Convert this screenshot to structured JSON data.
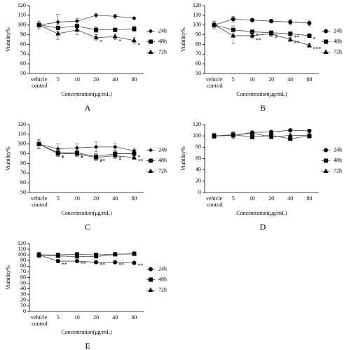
{
  "chart_data": [
    {
      "type": "line",
      "caption": "A",
      "ylabel": "Viability%",
      "xlabel": "Concentration(μg/mL)",
      "color": "#000000",
      "categories": [
        "vehicle control",
        "5",
        "10",
        "20",
        "40",
        "80"
      ],
      "ylim": [
        50,
        120
      ],
      "yticks": [
        50,
        60,
        70,
        80,
        90,
        100,
        110,
        120
      ],
      "series": [
        {
          "name": "24h",
          "marker": "diamond",
          "values": [
            100,
            103,
            104,
            110,
            109,
            107
          ],
          "errors": [
            4,
            8,
            3,
            2,
            2,
            1
          ],
          "significance": [
            null,
            null,
            null,
            null,
            null,
            null
          ]
        },
        {
          "name": "48h",
          "marker": "square",
          "values": [
            100,
            97,
            99,
            95,
            95,
            96
          ],
          "errors": [
            3,
            4,
            4,
            3,
            1,
            3
          ],
          "significance": [
            null,
            null,
            null,
            null,
            null,
            null
          ]
        },
        {
          "name": "72h",
          "marker": "triangle",
          "values": [
            100,
            91,
            95,
            87,
            88,
            84
          ],
          "errors": [
            4,
            6,
            5,
            3,
            3,
            3
          ],
          "significance": [
            null,
            null,
            null,
            "*",
            "*",
            "*"
          ]
        }
      ]
    },
    {
      "type": "line",
      "caption": "B",
      "ylabel": "Viability%",
      "xlabel": "Concentration(μg/mL)",
      "color": "#000000",
      "categories": [
        "vehicle control",
        "5",
        "10",
        "20",
        "40",
        "80"
      ],
      "ylim": [
        50,
        120
      ],
      "yticks": [
        50,
        60,
        70,
        80,
        90,
        100,
        110,
        120
      ],
      "series": [
        {
          "name": "24h",
          "marker": "circle",
          "values": [
            100,
            106,
            105,
            104,
            103,
            102
          ],
          "errors": [
            4,
            3,
            2,
            2,
            3,
            3
          ],
          "significance": [
            null,
            null,
            null,
            null,
            null,
            null
          ]
        },
        {
          "name": "48h",
          "marker": "square",
          "values": [
            100,
            95,
            93,
            92,
            91,
            89
          ],
          "errors": [
            3,
            4,
            2,
            2,
            2,
            2
          ],
          "significance": [
            null,
            null,
            "*",
            "*",
            "**",
            "*"
          ]
        },
        {
          "name": "72h",
          "marker": "triangle",
          "values": [
            100,
            89,
            89,
            91,
            85,
            79
          ],
          "errors": [
            4,
            8,
            3,
            3,
            2,
            2
          ],
          "significance": [
            null,
            null,
            "**",
            "*",
            "**",
            "***"
          ]
        }
      ]
    },
    {
      "type": "line",
      "caption": "C",
      "ylabel": "Viability%",
      "xlabel": "Concentration(μg/mL)",
      "color": "#000000",
      "categories": [
        "vehicle control",
        "5",
        "10",
        "20",
        "40",
        "80"
      ],
      "ylim": [
        50,
        120
      ],
      "yticks": [
        50,
        60,
        70,
        80,
        90,
        100,
        110,
        120
      ],
      "series": [
        {
          "name": "24h",
          "marker": "diamond",
          "values": [
            100,
            95,
            96,
            97,
            97,
            93
          ],
          "errors": [
            5,
            5,
            4,
            5,
            3,
            3
          ],
          "significance": [
            null,
            null,
            null,
            null,
            null,
            null
          ]
        },
        {
          "name": "48h",
          "marker": "square",
          "values": [
            100,
            91,
            91,
            87,
            90,
            90
          ],
          "errors": [
            4,
            3,
            3,
            3,
            3,
            2
          ],
          "significance": [
            null,
            "*",
            "*",
            "**",
            "*",
            "*"
          ]
        },
        {
          "name": "72h",
          "marker": "triangle",
          "values": [
            100,
            90,
            90,
            86,
            88,
            86
          ],
          "errors": [
            4,
            3,
            3,
            3,
            3,
            2
          ],
          "significance": [
            null,
            "*",
            "*",
            "*",
            "*",
            "**"
          ]
        }
      ]
    },
    {
      "type": "line",
      "caption": "D",
      "ylabel": "Viability%",
      "xlabel": "Concentration(μg/mL)",
      "color": "#000000",
      "categories": [
        "vehicle control",
        "5",
        "10",
        "20",
        "40",
        "80"
      ],
      "ylim": [
        0,
        120
      ],
      "yticks": [
        0,
        20,
        40,
        60,
        80,
        100,
        120
      ],
      "series": [
        {
          "name": "24h",
          "marker": "circle",
          "values": [
            100,
            101,
            106,
            107,
            110,
            109
          ],
          "errors": [
            5,
            4,
            3,
            2,
            2,
            3
          ],
          "significance": [
            null,
            null,
            null,
            null,
            null,
            null
          ]
        },
        {
          "name": "48h",
          "marker": "square",
          "values": [
            100,
            102,
            98,
            101,
            95,
            100
          ],
          "errors": [
            4,
            6,
            3,
            3,
            2,
            4
          ],
          "significance": [
            null,
            null,
            null,
            null,
            null,
            null
          ]
        },
        {
          "name": "72h",
          "marker": "triangle",
          "values": [
            100,
            101,
            105,
            98,
            101,
            101
          ],
          "errors": [
            4,
            5,
            3,
            3,
            2,
            3
          ],
          "significance": [
            null,
            null,
            null,
            null,
            null,
            null
          ]
        }
      ]
    },
    {
      "type": "line",
      "caption": "E",
      "ylabel": "Viability%",
      "xlabel": "Concentration(μg/mL)",
      "color": "#000000",
      "categories": [
        "vehicle control",
        "5",
        "10",
        "20",
        "40",
        "80"
      ],
      "ylim": [
        0,
        120
      ],
      "yticks": [
        0,
        10,
        20,
        30,
        40,
        50,
        60,
        70,
        80,
        90,
        100,
        110,
        120
      ],
      "series": [
        {
          "name": "24h",
          "marker": "circle",
          "values": [
            100,
            89,
            89,
            87,
            87,
            86
          ],
          "errors": [
            5,
            3,
            2,
            2,
            2,
            2
          ],
          "significance": [
            null,
            "**",
            "**",
            "**",
            "**",
            "**"
          ]
        },
        {
          "name": "48h",
          "marker": "square",
          "values": [
            100,
            100,
            101,
            100,
            101,
            102
          ],
          "errors": [
            4,
            3,
            3,
            2,
            2,
            2
          ],
          "significance": [
            null,
            null,
            null,
            null,
            null,
            null
          ]
        },
        {
          "name": "72h",
          "marker": "triangle",
          "values": [
            100,
            98,
            97,
            97,
            101,
            102
          ],
          "errors": [
            4,
            3,
            3,
            2,
            2,
            2
          ],
          "significance": [
            null,
            null,
            null,
            null,
            null,
            null
          ]
        }
      ]
    }
  ]
}
